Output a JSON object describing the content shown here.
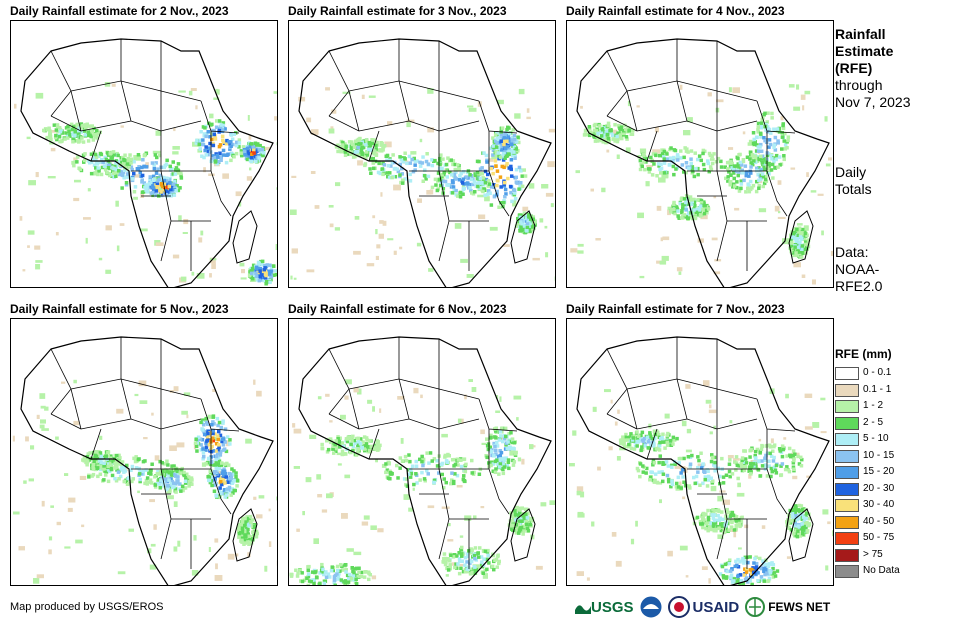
{
  "panels": [
    {
      "title": "Daily Rainfall estimate for 2 Nov., 2023"
    },
    {
      "title": "Daily Rainfall estimate for 3 Nov., 2023"
    },
    {
      "title": "Daily Rainfall estimate for 4 Nov., 2023"
    },
    {
      "title": "Daily Rainfall estimate for 5 Nov., 2023"
    },
    {
      "title": "Daily Rainfall estimate for 6 Nov., 2023"
    },
    {
      "title": "Daily Rainfall estimate for 7 Nov., 2023"
    }
  ],
  "side": {
    "heading_line1": "Rainfall",
    "heading_line2": "Estimate",
    "heading_line3": "(RFE)",
    "through": "through",
    "date": "Nov 7, 2023",
    "daily_line1": "Daily",
    "daily_line2": "Totals",
    "data_line1": "Data:",
    "data_line2": "NOAA-",
    "data_line3": "RFE2.0"
  },
  "legend": {
    "title": "RFE (mm)",
    "items": [
      {
        "label": "0 - 0.1",
        "color": "#ffffff"
      },
      {
        "label": "0.1 - 1",
        "color": "#ead9bd"
      },
      {
        "label": "1 - 2",
        "color": "#b6f2a8"
      },
      {
        "label": "2 - 5",
        "color": "#5fd95b"
      },
      {
        "label": "5 - 10",
        "color": "#aeeef6"
      },
      {
        "label": "10 - 15",
        "color": "#8bc3f1"
      },
      {
        "label": "15 - 20",
        "color": "#4f9ee8"
      },
      {
        "label": "20 - 30",
        "color": "#1f63e0"
      },
      {
        "label": "30 - 40",
        "color": "#f9e17a"
      },
      {
        "label": "40 - 50",
        "color": "#f3a214"
      },
      {
        "label": "50 - 75",
        "color": "#f24012"
      },
      {
        "label": "> 75",
        "color": "#a51a1a"
      },
      {
        "label": "No Data",
        "color": "#8c8c8c"
      }
    ]
  },
  "credit": "Map produced by USGS/EROS",
  "logos": {
    "usgs": "USGS",
    "usaid": "USAID",
    "fews": "FEWS NET"
  }
}
